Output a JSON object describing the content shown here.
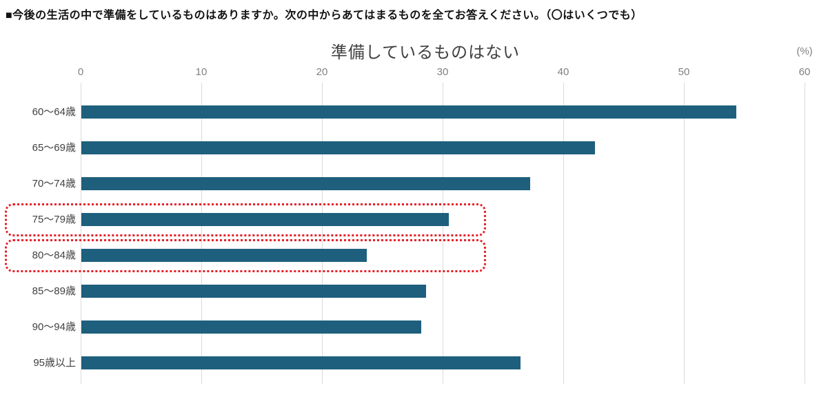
{
  "header": {
    "question": "■今後の生活の中で準備をしているものはありますか。次の中からあてはまるものを全てお答えください。（〇はいくつでも）"
  },
  "chart_data": {
    "type": "bar",
    "orientation": "horizontal",
    "title": "準備しているものはない",
    "unit_label": "(%)",
    "categories": [
      "60～64歳",
      "65～69歳",
      "70～74歳",
      "75～79歳",
      "80～84歳",
      "85～89歳",
      "90～94歳",
      "95歳以上"
    ],
    "values": [
      54.3,
      42.6,
      37.2,
      30.5,
      23.7,
      28.6,
      28.2,
      36.4
    ],
    "xlim": [
      0,
      60
    ],
    "xticks": [
      0,
      10,
      20,
      30,
      40,
      50,
      60
    ],
    "grid": true,
    "legend": "none",
    "bar_color": "#1e5f7d",
    "gridline_color": "#d9d9d9",
    "highlight": {
      "categories": [
        "75～79歳",
        "80～84歳"
      ],
      "box_color": "#e5202a",
      "box_style": "dotted"
    }
  }
}
